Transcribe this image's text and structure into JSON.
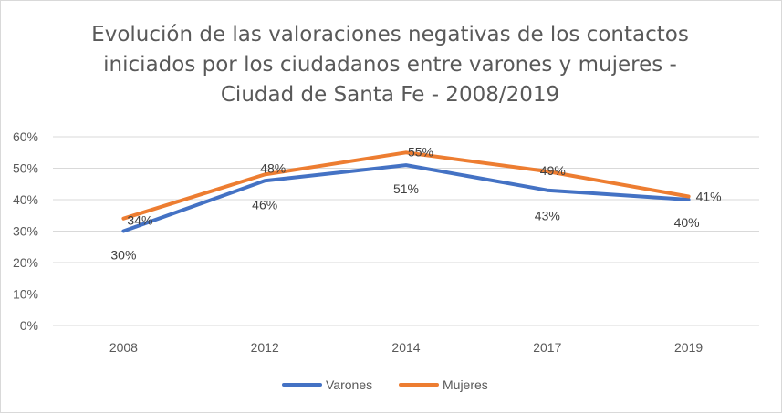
{
  "chart_data": {
    "type": "line",
    "title_lines": [
      "Evolución de las valoraciones negativas de los contactos",
      "iniciados por los ciudadanos entre varones y mujeres -",
      "Ciudad de Santa Fe - 2008/2019"
    ],
    "categories": [
      "2008",
      "2012",
      "2014",
      "2017",
      "2019"
    ],
    "series": [
      {
        "name": "Varones",
        "color": "#4472c4",
        "values": [
          30,
          46,
          51,
          43,
          40
        ],
        "labels": [
          "30%",
          "46%",
          "51%",
          "43%",
          "40%"
        ]
      },
      {
        "name": "Mujeres",
        "color": "#ed7d31",
        "values": [
          34,
          48,
          55,
          49,
          41
        ],
        "labels": [
          "34%",
          "48%",
          "55%",
          "49%",
          "41%"
        ]
      }
    ],
    "y_ticks": [
      "0%",
      "10%",
      "20%",
      "30%",
      "40%",
      "50%",
      "60%"
    ],
    "ylim": [
      0,
      60
    ],
    "grid": true,
    "legend_position": "bottom",
    "text_color": "#595959",
    "grid_color": "#d9d9d9"
  }
}
